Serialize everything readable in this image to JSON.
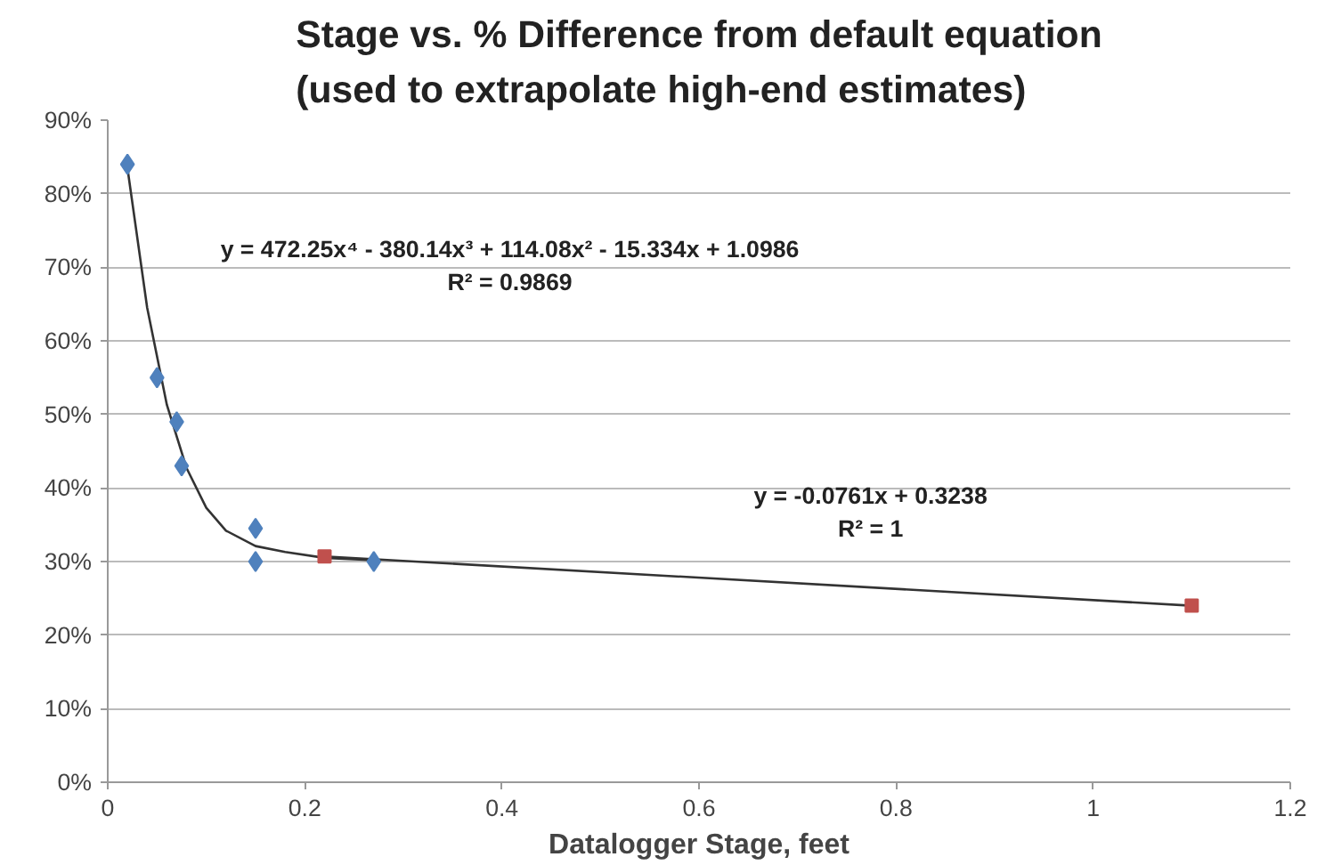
{
  "chart_data": {
    "type": "scatter",
    "title": "Stage vs. % Difference from default equation\n(used to extrapolate high-end estimates)",
    "xlabel": "Datalogger Stage, feet",
    "xlim": [
      0,
      1.2
    ],
    "xticks": [
      0,
      0.2,
      0.4,
      0.6,
      0.8,
      1,
      1.2
    ],
    "ylim": [
      0,
      0.9
    ],
    "yticks": [
      {
        "value": 0,
        "label": "0%"
      },
      {
        "value": 0.1,
        "label": "10%"
      },
      {
        "value": 0.2,
        "label": "20%"
      },
      {
        "value": 0.3,
        "label": "30%"
      },
      {
        "value": 0.4,
        "label": "40%"
      },
      {
        "value": 0.5,
        "label": "50%"
      },
      {
        "value": 0.6,
        "label": "60%"
      },
      {
        "value": 0.7,
        "label": "70%"
      },
      {
        "value": 0.8,
        "label": "80%"
      },
      {
        "value": 0.9,
        "label": "90%"
      }
    ],
    "grid": "y",
    "series": [
      {
        "type": "line",
        "color": "#333333",
        "marker": "none",
        "line_style": "solid",
        "x": [
          0.02,
          0.04,
          0.06,
          0.08,
          0.1,
          0.12,
          0.15,
          0.18,
          0.22,
          0.27
        ],
        "values": [
          0.835,
          0.645,
          0.513,
          0.427,
          0.373,
          0.342,
          0.321,
          0.313,
          0.305,
          0.302
        ]
      },
      {
        "type": "line",
        "color": "#333333",
        "marker": "none",
        "line_style": "solid",
        "x": [
          0.22,
          1.1
        ],
        "values": [
          0.307,
          0.24
        ]
      },
      {
        "color": "#4f81bd",
        "marker": "diamond",
        "x": [
          0.02,
          0.05,
          0.07,
          0.075,
          0.15,
          0.15,
          0.27
        ],
        "values": [
          0.84,
          0.55,
          0.49,
          0.43,
          0.345,
          0.3,
          0.3
        ]
      },
      {
        "color": "#c0504d",
        "marker": "square",
        "x": [
          0.22,
          1.1
        ],
        "values": [
          0.307,
          0.24
        ]
      }
    ],
    "annotations": [
      "y = 472.25x⁴ - 380.14x³ + 114.08x² - 15.334x + 1.0986",
      "R² = 0.9869",
      "y = -0.0761x + 0.3238",
      "R² = 1"
    ]
  }
}
